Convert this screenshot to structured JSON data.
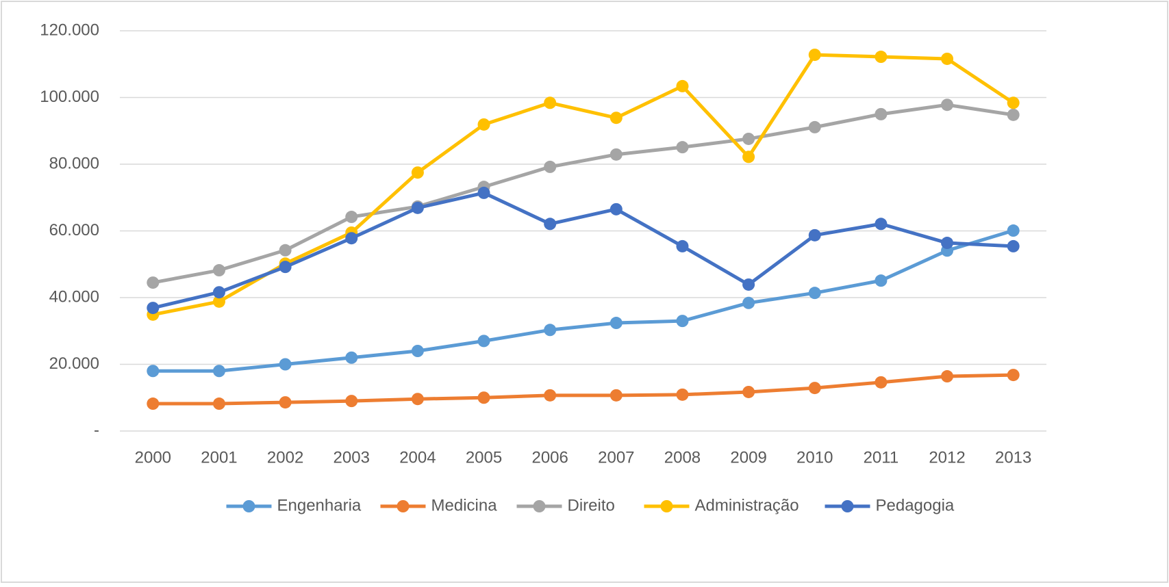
{
  "chart_data": {
    "type": "line",
    "categories": [
      "2000",
      "2001",
      "2002",
      "2003",
      "2004",
      "2005",
      "2006",
      "2007",
      "2008",
      "2009",
      "2010",
      "2011",
      "2012",
      "2013"
    ],
    "series": [
      {
        "name": "Engenharia",
        "color": "#5b9bd5",
        "values": [
          18000,
          18000,
          20000,
          22000,
          24000,
          27000,
          30300,
          32400,
          33000,
          38400,
          41400,
          45100,
          54100,
          60100
        ]
      },
      {
        "name": "Medicina",
        "color": "#ed7d31",
        "values": [
          8200,
          8200,
          8600,
          9000,
          9600,
          10000,
          10700,
          10700,
          10900,
          11700,
          12900,
          14600,
          16400,
          16800
        ]
      },
      {
        "name": "Direito",
        "color": "#a5a5a5",
        "values": [
          44500,
          48200,
          54200,
          64200,
          67300,
          73200,
          79200,
          82900,
          85100,
          87600,
          91100,
          95000,
          97800,
          94800
        ]
      },
      {
        "name": "Administração",
        "color": "#ffc000",
        "values": [
          34900,
          38800,
          50200,
          59500,
          77500,
          91900,
          98400,
          93900,
          103400,
          82200,
          112800,
          112200,
          111600,
          98400
        ]
      },
      {
        "name": "Pedagogia",
        "color": "#4472c4",
        "values": [
          36900,
          41600,
          49200,
          57800,
          66900,
          71400,
          62100,
          66500,
          55400,
          43900,
          58700,
          62100,
          56400,
          55400
        ]
      }
    ],
    "ylim": [
      0,
      120000
    ],
    "yticks": [
      {
        "value": 0,
        "label": "-"
      },
      {
        "value": 20000,
        "label": "20.000"
      },
      {
        "value": 40000,
        "label": "40.000"
      },
      {
        "value": 60000,
        "label": "60.000"
      },
      {
        "value": 80000,
        "label": "80.000"
      },
      {
        "value": 100000,
        "label": "100.000"
      },
      {
        "value": 120000,
        "label": "120.000"
      }
    ],
    "grid": true,
    "legend": "bottom"
  }
}
